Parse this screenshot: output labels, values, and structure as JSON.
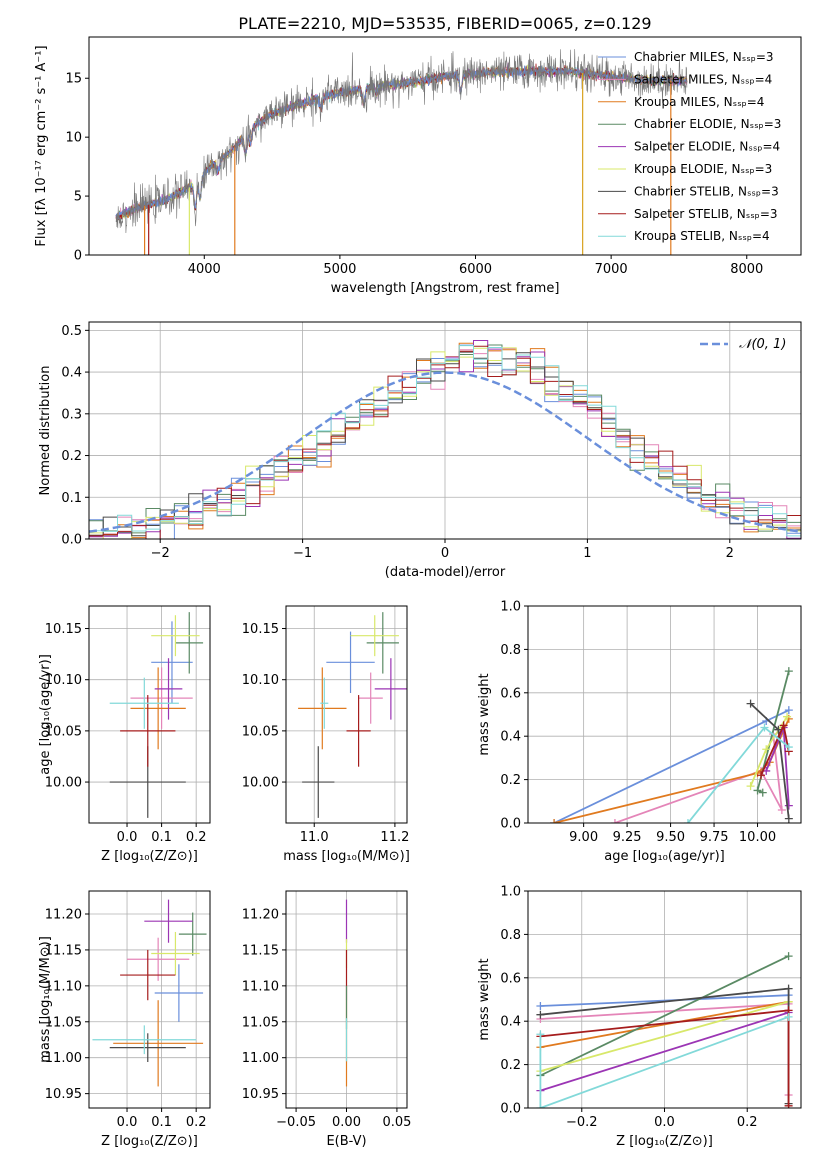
{
  "figure_title": "PLATE=2210, MJD=53535, FIBERID=0065, z=0.129",
  "colors": {
    "Chabrier MILES": "#6a8fdb",
    "Salpeter MILES": "#e485b8",
    "Kroupa MILES": "#e07a1f",
    "Chabrier ELODIE": "#5a8a64",
    "Salpeter ELODIE": "#9b35b4",
    "Kroupa ELODIE": "#d8e86a",
    "Chabrier STELIB": "#4a4a4a",
    "Salpeter STELIB": "#a51c1c",
    "Kroupa STELIB": "#82d9d9",
    "gaussian": "#6a8fdb",
    "grid": "#b0b0b0"
  },
  "chart_data": [
    {
      "id": "spectrum",
      "type": "line",
      "title": "PLATE=2210, MJD=53535, FIBERID=0065, z=0.129",
      "xlabel": "wavelength [Angstrom, rest frame]",
      "ylabel": "Flux [fλ 10⁻¹⁷ erg cm⁻² s⁻¹ A⁻¹]",
      "xlim": [
        3150,
        8400
      ],
      "ylim": [
        0,
        18.5
      ],
      "xticks": [
        4000,
        5000,
        6000,
        7000,
        8000
      ],
      "yticks": [
        0,
        5,
        10,
        15
      ],
      "grid": false,
      "legend_position": "top-right",
      "legend": [
        "Chabrier MILES, Nₛₛₚ=3",
        "Salpeter MILES, Nₛₛₚ=4",
        "Kroupa MILES, Nₛₛₚ=4",
        "Chabrier ELODIE, Nₛₛₚ=3",
        "Salpeter ELODIE, Nₛₛₚ=4",
        "Kroupa ELODIE, Nₛₛₚ=3",
        "Chabrier STELIB, Nₛₛₚ=3",
        "Salpeter STELIB, Nₛₛₚ=3",
        "Kroupa STELIB, Nₛₛₚ=4"
      ],
      "continuum": {
        "x": [
          3350,
          3500,
          3700,
          3900,
          4050,
          4200,
          4350,
          4500,
          4700,
          4900,
          5100,
          5300,
          5500,
          5800,
          6100,
          6400,
          6700,
          7000,
          7300,
          7550
        ],
        "y": [
          3.2,
          4.0,
          4.6,
          5.8,
          7.6,
          8.8,
          10.8,
          12.0,
          12.8,
          13.5,
          14.0,
          14.4,
          14.6,
          15.2,
          15.5,
          15.6,
          15.6,
          15.1,
          14.8,
          14.8
        ]
      },
      "model_range": [
        3350,
        7560
      ],
      "observed_range": [
        3350,
        7600
      ]
    },
    {
      "id": "residuals",
      "type": "histogram",
      "xlabel": "(data-model)/error",
      "ylabel": "Normed distribution",
      "xlim": [
        -2.5,
        2.5
      ],
      "ylim": [
        0,
        0.52
      ],
      "xticks": [
        -2,
        -1,
        0,
        1,
        2
      ],
      "yticks": [
        0.0,
        0.1,
        0.2,
        0.3,
        0.4,
        0.5
      ],
      "grid": true,
      "legend": [
        "𝒩(0, 1)"
      ],
      "legend_position": "top-right",
      "bin_width": 0.1,
      "bin_range": [
        -2.5,
        2.5
      ]
    },
    {
      "id": "age-Z",
      "type": "errorbar",
      "xlabel": "Z [log₁₀(Z/Z⊙)]",
      "ylabel": "age  [log₁₀(age/yr)]",
      "xlim": [
        -0.11,
        0.24
      ],
      "ylim": [
        9.96,
        10.172
      ],
      "xticks": [
        0.0,
        0.1,
        0.2
      ],
      "yticks": [
        10.0,
        10.05,
        10.1,
        10.15
      ],
      "grid": true,
      "points": [
        {
          "model": "Chabrier MILES",
          "x": 0.13,
          "xerr": 0.06,
          "y": 10.117,
          "yerr": 0.04
        },
        {
          "model": "Salpeter MILES",
          "x": 0.1,
          "xerr": 0.09,
          "y": 10.082,
          "yerr": 0.03
        },
        {
          "model": "Kroupa MILES",
          "x": 0.09,
          "xerr": 0.08,
          "y": 10.072,
          "yerr": 0.04
        },
        {
          "model": "Chabrier ELODIE",
          "x": 0.18,
          "xerr": 0.04,
          "y": 10.136,
          "yerr": 0.03
        },
        {
          "model": "Salpeter ELODIE",
          "x": 0.12,
          "xerr": 0.04,
          "y": 10.091,
          "yerr": 0.03
        },
        {
          "model": "Kroupa ELODIE",
          "x": 0.14,
          "xerr": 0.07,
          "y": 10.143,
          "yerr": 0.02
        },
        {
          "model": "Chabrier STELIB",
          "x": 0.06,
          "xerr": 0.11,
          "y": 10.0,
          "yerr": 0.035
        },
        {
          "model": "Salpeter STELIB",
          "x": 0.06,
          "xerr": 0.08,
          "y": 10.05,
          "yerr": 0.035
        },
        {
          "model": "Kroupa STELIB",
          "x": 0.05,
          "xerr": 0.1,
          "y": 10.077,
          "yerr": 0.025
        }
      ]
    },
    {
      "id": "age-mass",
      "type": "errorbar",
      "xlabel": "mass [log₁₀(M/M⊙)]",
      "ylabel": "",
      "xlim": [
        10.93,
        11.23
      ],
      "ylim": [
        9.96,
        10.172
      ],
      "xticks": [
        11.0,
        11.2
      ],
      "yticks": [
        10.0,
        10.05,
        10.1,
        10.15
      ],
      "grid": true,
      "points": [
        {
          "model": "Chabrier MILES",
          "x": 11.09,
          "xerr": 0.06,
          "y": 10.117,
          "yerr": 0.03
        },
        {
          "model": "Salpeter MILES",
          "x": 11.14,
          "xerr": 0.03,
          "y": 10.082,
          "yerr": 0.025
        },
        {
          "model": "Kroupa MILES",
          "x": 11.02,
          "xerr": 0.06,
          "y": 10.072,
          "yerr": 0.04
        },
        {
          "model": "Chabrier ELODIE",
          "x": 11.17,
          "xerr": 0.04,
          "y": 10.136,
          "yerr": 0.03
        },
        {
          "model": "Salpeter ELODIE",
          "x": 11.19,
          "xerr": 0.04,
          "y": 10.091,
          "yerr": 0.03
        },
        {
          "model": "Kroupa ELODIE",
          "x": 11.15,
          "xerr": 0.06,
          "y": 10.143,
          "yerr": 0.02
        },
        {
          "model": "Chabrier STELIB",
          "x": 11.01,
          "xerr": 0.04,
          "y": 10.0,
          "yerr": 0.035
        },
        {
          "model": "Salpeter STELIB",
          "x": 11.11,
          "xerr": 0.03,
          "y": 10.05,
          "yerr": 0.035
        },
        {
          "model": "Kroupa STELIB",
          "x": 11.025,
          "xerr": 0.01,
          "y": 10.077,
          "yerr": 0.025
        }
      ]
    },
    {
      "id": "weight-age",
      "type": "line",
      "xlabel": "age  [log₁₀(age/yr)]",
      "ylabel": "mass weight",
      "xlim": [
        8.68,
        10.25
      ],
      "ylim": [
        0,
        1.0
      ],
      "xticks": [
        9.0,
        9.25,
        9.5,
        9.75,
        10.0
      ],
      "yticks": [
        0.0,
        0.2,
        0.4,
        0.6,
        0.8,
        1.0
      ],
      "grid": true,
      "series": [
        {
          "model": "Chabrier MILES",
          "x": [
            8.83,
            10.05,
            10.18
          ],
          "y": [
            0.0,
            0.47,
            0.52
          ]
        },
        {
          "model": "Salpeter MILES",
          "x": [
            9.18,
            10.02,
            10.14,
            10.09
          ],
          "y": [
            0.0,
            0.24,
            0.06,
            0.41
          ]
        },
        {
          "model": "Kroupa MILES",
          "x": [
            8.83,
            10.0,
            10.07,
            10.18
          ],
          "y": [
            0.0,
            0.23,
            0.28,
            0.48
          ]
        },
        {
          "model": "Chabrier ELODIE",
          "x": [
            10.03,
            10.0,
            10.18
          ],
          "y": [
            0.14,
            0.15,
            0.7
          ]
        },
        {
          "model": "Salpeter ELODIE",
          "x": [
            10.05,
            10.15,
            10.18
          ],
          "y": [
            0.24,
            0.44,
            0.08
          ]
        },
        {
          "model": "Kroupa ELODIE",
          "x": [
            9.96,
            10.05,
            10.17
          ],
          "y": [
            0.17,
            0.34,
            0.49
          ]
        },
        {
          "model": "Chabrier STELIB",
          "x": [
            9.96,
            10.12,
            10.18
          ],
          "y": [
            0.55,
            0.43,
            0.02
          ]
        },
        {
          "model": "Salpeter STELIB",
          "x": [
            10.02,
            10.15,
            10.18
          ],
          "y": [
            0.22,
            0.45,
            0.33
          ]
        },
        {
          "model": "Kroupa STELIB",
          "x": [
            9.6,
            10.04,
            10.18
          ],
          "y": [
            0.0,
            0.44,
            0.35
          ]
        }
      ]
    },
    {
      "id": "mass-Z",
      "type": "errorbar",
      "xlabel": "Z [log₁₀(Z/Z⊙)]",
      "ylabel": "mass [log₁₀(M/M⊙)]",
      "xlim": [
        -0.11,
        0.24
      ],
      "ylim": [
        10.93,
        11.232
      ],
      "xticks": [
        0.0,
        0.1,
        0.2
      ],
      "yticks": [
        10.95,
        11.0,
        11.05,
        11.1,
        11.15,
        11.2
      ],
      "grid": true,
      "points": [
        {
          "model": "Chabrier MILES",
          "x": 0.15,
          "xerr": 0.07,
          "y": 11.09,
          "yerr": 0.04
        },
        {
          "model": "Salpeter MILES",
          "x": 0.09,
          "xerr": 0.09,
          "y": 11.137,
          "yerr": 0.03
        },
        {
          "model": "Kroupa MILES",
          "x": 0.09,
          "xerr": 0.13,
          "y": 11.02,
          "yerr": 0.06
        },
        {
          "model": "Chabrier ELODIE",
          "x": 0.19,
          "xerr": 0.04,
          "y": 11.172,
          "yerr": 0.03
        },
        {
          "model": "Salpeter ELODIE",
          "x": 0.12,
          "xerr": 0.07,
          "y": 11.19,
          "yerr": 0.03
        },
        {
          "model": "Kroupa ELODIE",
          "x": 0.14,
          "xerr": 0.07,
          "y": 11.145,
          "yerr": 0.03
        },
        {
          "model": "Chabrier STELIB",
          "x": 0.06,
          "xerr": 0.11,
          "y": 11.014,
          "yerr": 0.02
        },
        {
          "model": "Salpeter STELIB",
          "x": 0.06,
          "xerr": 0.08,
          "y": 11.115,
          "yerr": 0.035
        },
        {
          "model": "Kroupa STELIB",
          "x": 0.05,
          "xerr": 0.15,
          "y": 11.025,
          "yerr": 0.02
        }
      ]
    },
    {
      "id": "mass-EBV",
      "type": "errorbar",
      "xlabel": "E(B-V)",
      "ylabel": "",
      "xlim": [
        -0.06,
        0.06
      ],
      "ylim": [
        10.93,
        11.232
      ],
      "xticks": [
        -0.05,
        0.0,
        0.05
      ],
      "yticks": [
        10.95,
        11.0,
        11.05,
        11.1,
        11.15,
        11.2
      ],
      "grid": true,
      "points": [
        {
          "model": "Kroupa MILES",
          "x": 0.0,
          "xerr": 0.0,
          "y": 11.02,
          "yerr": 0.06
        },
        {
          "model": "Salpeter ELODIE",
          "x": 0.0,
          "xerr": 0.0,
          "y": 11.19,
          "yerr": 0.03
        },
        {
          "model": "Kroupa ELODIE",
          "x": 0.0,
          "xerr": 0.0,
          "y": 11.145,
          "yerr": 0.02
        },
        {
          "model": "Salpeter STELIB",
          "x": 0.0,
          "xerr": 0.0,
          "y": 11.115,
          "yerr": 0.035
        },
        {
          "model": "Chabrier ELODIE",
          "x": 0.0,
          "xerr": 0.0,
          "y": 11.07,
          "yerr": 0.03
        },
        {
          "model": "Kroupa STELIB",
          "x": 0.0,
          "xerr": 0.0,
          "y": 11.025,
          "yerr": 0.03
        }
      ]
    },
    {
      "id": "weight-Z",
      "type": "line",
      "xlabel": "Z [log₁₀(Z/Z⊙)]",
      "ylabel": "mass weight",
      "xlim": [
        -0.33,
        0.33
      ],
      "ylim": [
        0,
        1.0
      ],
      "xticks": [
        -0.2,
        0.0,
        0.2
      ],
      "yticks": [
        0.0,
        0.2,
        0.4,
        0.6,
        0.8,
        1.0
      ],
      "grid": true,
      "series": [
        {
          "model": "Chabrier MILES",
          "x": [
            -0.3,
            0.3
          ],
          "y": [
            0.47,
            0.52
          ]
        },
        {
          "model": "Salpeter MILES",
          "x": [
            -0.3,
            0.3,
            0.3
          ],
          "y": [
            0.41,
            0.48,
            0.06
          ]
        },
        {
          "model": "Kroupa MILES",
          "x": [
            -0.3,
            0.3
          ],
          "y": [
            0.28,
            0.49
          ]
        },
        {
          "model": "Chabrier ELODIE",
          "x": [
            -0.3,
            0.3
          ],
          "y": [
            0.15,
            0.7
          ]
        },
        {
          "model": "Salpeter ELODIE",
          "x": [
            -0.3,
            0.3
          ],
          "y": [
            0.08,
            0.44
          ]
        },
        {
          "model": "Kroupa ELODIE",
          "x": [
            -0.3,
            0.3
          ],
          "y": [
            0.17,
            0.49
          ]
        },
        {
          "model": "Chabrier STELIB",
          "x": [
            -0.3,
            0.3,
            0.3
          ],
          "y": [
            0.43,
            0.55,
            0.02
          ]
        },
        {
          "model": "Salpeter STELIB",
          "x": [
            -0.3,
            0.3,
            0.3
          ],
          "y": [
            0.33,
            0.45,
            0.01
          ]
        },
        {
          "model": "Kroupa STELIB",
          "x": [
            -0.3,
            -0.3,
            0.3
          ],
          "y": [
            0.34,
            0.0,
            0.42
          ]
        }
      ]
    }
  ]
}
